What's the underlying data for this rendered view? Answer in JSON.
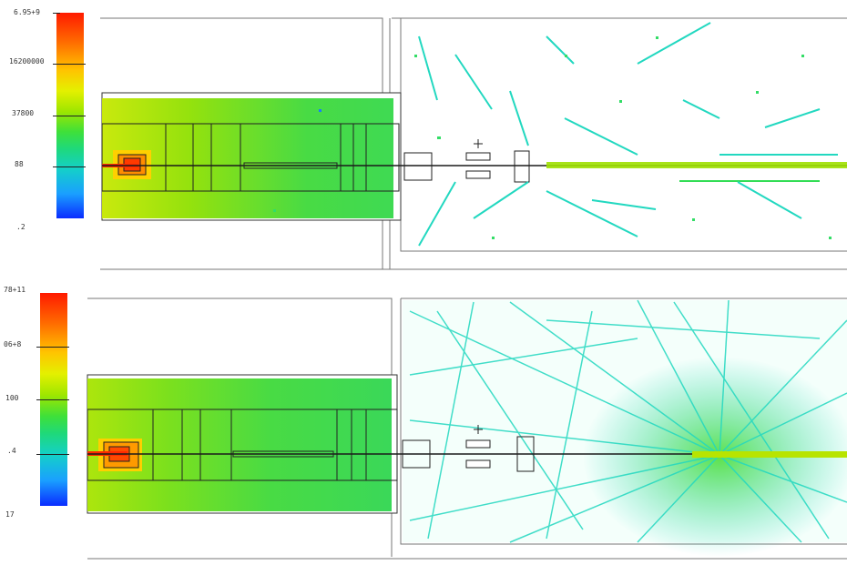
{
  "top_panel": {
    "scale_labels": [
      "6.95+9",
      "16200000",
      "37800",
      "88",
      ".2"
    ],
    "colors": {
      "hot": "#ff2a00",
      "warm": "#e6e600",
      "mid": "#33dd33",
      "cool": "#22ddcc",
      "cold": "#1a66ff"
    }
  },
  "bottom_panel": {
    "scale_labels": [
      "78+11",
      "06+8",
      "100",
      ".4",
      "17"
    ],
    "colors": {
      "hot": "#ff2a00",
      "warm": "#e6e600",
      "mid": "#33dd33",
      "cool": "#22ddcc",
      "cold": "#1a66ff"
    }
  }
}
